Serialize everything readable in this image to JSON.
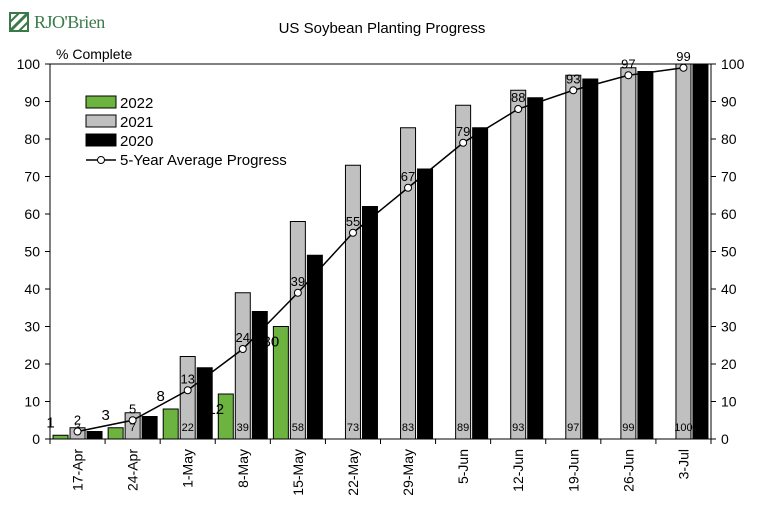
{
  "logo": {
    "text": "RJO'Brien"
  },
  "chart_data": {
    "type": "bar",
    "title": "US Soybean Planting Progress",
    "ylabel": "% Complete",
    "xlabel": "",
    "ylim": [
      0,
      100
    ],
    "yticks": [
      0,
      10,
      20,
      30,
      40,
      50,
      60,
      70,
      80,
      90,
      100
    ],
    "secondary_y_axis": true,
    "grid": false,
    "legend_position": "top-left",
    "categories": [
      "17-Apr",
      "24-Apr",
      "1-May",
      "8-May",
      "15-May",
      "22-May",
      "29-May",
      "5-Jun",
      "12-Jun",
      "19-Jun",
      "26-Jun",
      "3-Jul"
    ],
    "series": [
      {
        "name": "2022",
        "kind": "bar",
        "color": "#6cb33f",
        "values": [
          1,
          3,
          8,
          12,
          30,
          null,
          null,
          null,
          null,
          null,
          null,
          null
        ]
      },
      {
        "name": "2021",
        "kind": "bar",
        "color": "#c0c0c0",
        "values": [
          3,
          7,
          22,
          39,
          58,
          73,
          83,
          89,
          93,
          97,
          99,
          100
        ]
      },
      {
        "name": "2020",
        "kind": "bar",
        "color": "#000000",
        "values": [
          2,
          6,
          19,
          34,
          49,
          62,
          72,
          83,
          91,
          96,
          98,
          100
        ]
      },
      {
        "name": "5-Year Average Progress",
        "kind": "line",
        "color": "#000000",
        "values": [
          2,
          5,
          13,
          24,
          39,
          55,
          67,
          79,
          88,
          93,
          97,
          99
        ]
      }
    ],
    "bar_labels": {
      "2022": [
        "1",
        "3",
        "8",
        "12",
        "30",
        "",
        "",
        "",
        "",
        "",
        "",
        ""
      ],
      "2021": [
        "3",
        "7",
        "22",
        "39",
        "58",
        "73",
        "83",
        "89",
        "93",
        "97",
        "99",
        "100"
      ]
    },
    "average_labels": [
      "2",
      "5",
      "13",
      "24",
      "39",
      "55",
      "67",
      "79",
      "88",
      "93",
      "97",
      "99"
    ]
  }
}
